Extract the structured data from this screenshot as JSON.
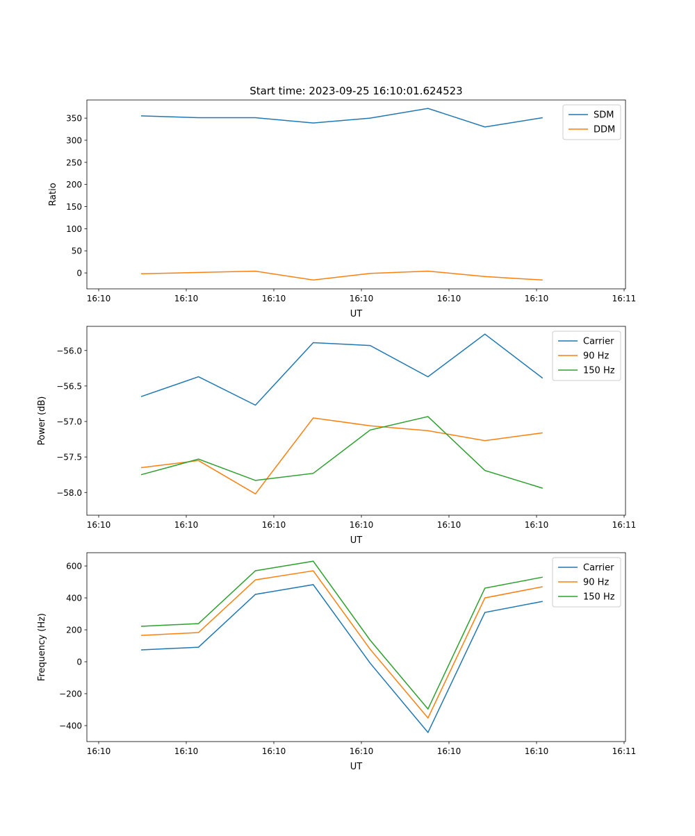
{
  "title": "Start time: 2023-09-25 16:10:01.624523",
  "colors": {
    "blue": "#1f77b4",
    "orange": "#ff7f0e",
    "green": "#2ca02c"
  },
  "chart_data": [
    {
      "type": "line",
      "xlabel": "UT",
      "ylabel": "Ratio",
      "x_seconds_after_1610": [
        4.84,
        11.4,
        17.9,
        24.5,
        31.0,
        37.6,
        44.1,
        50.7
      ],
      "xlim": [
        -1.35,
        60.16
      ],
      "xticks": [
        0,
        10,
        20,
        30,
        40,
        50,
        60
      ],
      "xtick_labels": [
        "16:10",
        "16:10",
        "16:10",
        "16:10",
        "16:10",
        "16:10",
        "16:11"
      ],
      "ylim": [
        -36,
        391
      ],
      "yticks": [
        0,
        50,
        100,
        150,
        200,
        250,
        300,
        350
      ],
      "ytick_labels": [
        "0",
        "50",
        "100",
        "150",
        "200",
        "250",
        "300",
        "350"
      ],
      "legend": "top-right",
      "series": [
        {
          "name": "SDM",
          "color": "#1f77b4",
          "values": [
            355,
            351,
            351,
            339,
            350,
            372,
            330,
            351
          ]
        },
        {
          "name": "DDM",
          "color": "#ff7f0e",
          "values": [
            -2,
            1,
            4,
            -16,
            -1,
            4,
            -8,
            -16
          ]
        }
      ]
    },
    {
      "type": "line",
      "xlabel": "UT",
      "ylabel": "Power (dB)",
      "x_seconds_after_1610": [
        4.84,
        11.4,
        17.9,
        24.5,
        31.0,
        37.6,
        44.1,
        50.7
      ],
      "xlim": [
        -1.35,
        60.16
      ],
      "xticks": [
        0,
        10,
        20,
        30,
        40,
        50,
        60
      ],
      "xtick_labels": [
        "16:10",
        "16:10",
        "16:10",
        "16:10",
        "16:10",
        "16:10",
        "16:11"
      ],
      "ylim": [
        -58.32,
        -55.66
      ],
      "yticks": [
        -58.0,
        -57.5,
        -57.0,
        -56.5,
        -56.0
      ],
      "ytick_labels": [
        "−58.0",
        "−57.5",
        "−57.0",
        "−56.5",
        "−56.0"
      ],
      "legend": "top-right",
      "series": [
        {
          "name": "Carrier",
          "color": "#1f77b4",
          "values": [
            -56.65,
            -56.37,
            -56.77,
            -55.89,
            -55.93,
            -56.37,
            -55.77,
            -56.39
          ]
        },
        {
          "name": "90 Hz",
          "color": "#ff7f0e",
          "values": [
            -57.65,
            -57.55,
            -58.02,
            -56.95,
            -57.06,
            -57.13,
            -57.27,
            -57.16
          ]
        },
        {
          "name": "150 Hz",
          "color": "#2ca02c",
          "values": [
            -57.75,
            -57.53,
            -57.83,
            -57.73,
            -57.12,
            -56.93,
            -57.69,
            -57.94
          ]
        }
      ]
    },
    {
      "type": "line",
      "xlabel": "UT",
      "ylabel": "Frequency (Hz)",
      "x_seconds_after_1610": [
        4.84,
        11.4,
        17.9,
        24.5,
        31.0,
        37.6,
        44.1,
        50.7
      ],
      "xlim": [
        -1.35,
        60.16
      ],
      "xticks": [
        0,
        10,
        20,
        30,
        40,
        50,
        60
      ],
      "xtick_labels": [
        "16:10",
        "16:10",
        "16:10",
        "16:10",
        "16:10",
        "16:10",
        "16:11"
      ],
      "ylim": [
        -500,
        683
      ],
      "yticks": [
        -400,
        -200,
        0,
        200,
        400,
        600
      ],
      "ytick_labels": [
        "−400",
        "−200",
        "0",
        "200",
        "400",
        "600"
      ],
      "legend": "top-right",
      "series": [
        {
          "name": "Carrier",
          "color": "#1f77b4",
          "values": [
            74,
            91,
            422,
            483,
            -9,
            -443,
            309,
            378
          ]
        },
        {
          "name": "90 Hz",
          "color": "#ff7f0e",
          "values": [
            165,
            183,
            513,
            570,
            78,
            -352,
            400,
            470
          ]
        },
        {
          "name": "150 Hz",
          "color": "#2ca02c",
          "values": [
            222,
            239,
            570,
            630,
            135,
            -296,
            461,
            530
          ]
        }
      ]
    }
  ]
}
